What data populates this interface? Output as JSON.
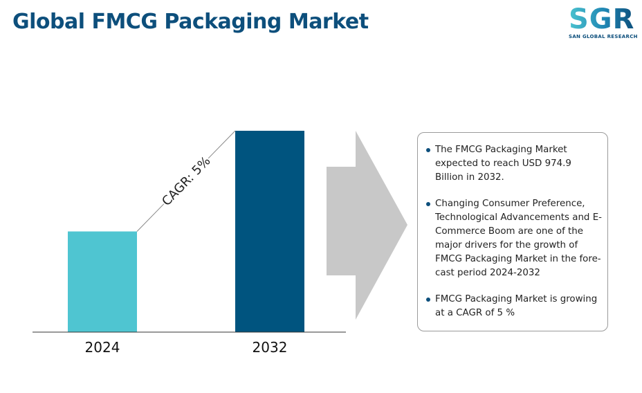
{
  "title": "Global FMCG Packaging Market",
  "logo": {
    "mark": "SGR",
    "sub": "SAN GLOBAL RESEARCH"
  },
  "colors": {
    "bar_2024": "#4fc5d1",
    "bar_2032": "#00547f",
    "title": "#0d4f7c",
    "arrow": "#c8c8c8"
  },
  "chart_data": {
    "type": "bar",
    "categories": [
      "2024",
      "2032"
    ],
    "values": [
      0.5,
      1.0
    ],
    "annotation": "CAGR: 5%",
    "ylim": [
      0,
      1.0
    ],
    "grid": false,
    "xlabel": "",
    "ylabel": ""
  },
  "info": {
    "bullets": [
      "The FMCG Packaging Market expected to reach USD 974.9 Billion in 2032.",
      "Changing Consumer Preference, Technological Advancements and E-Commerce Boom are one of the major drivers for the growth of FMCG Packaging Market in the fore-cast period 2024-2032",
      "FMCG Packaging Market is growing at a CAGR of 5 %"
    ]
  }
}
